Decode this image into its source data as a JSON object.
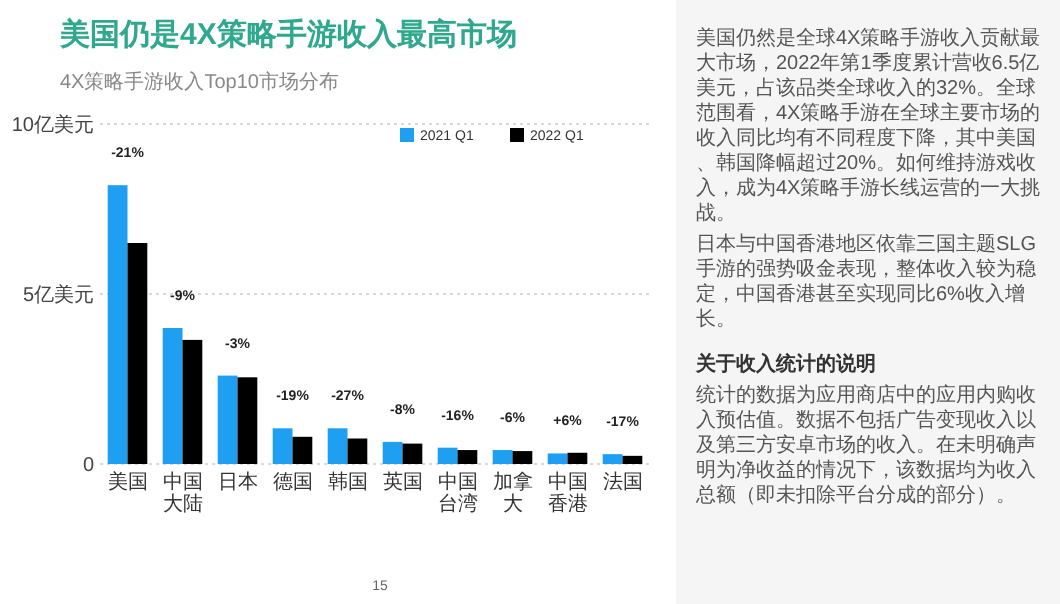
{
  "chart_data": {
    "type": "bar",
    "title": "美国仍是4X策略手游收入最高市场",
    "subtitle": "4X策略手游收入Top10市场分布",
    "categories": [
      "美国",
      "中国大陆",
      "日本",
      "德国",
      "韩国",
      "英国",
      "中国台湾",
      "加拿大",
      "中国香港",
      "法国"
    ],
    "series": [
      {
        "name": "2021 Q1",
        "color": "#1e9ff2",
        "values": [
          8.2,
          4.0,
          2.6,
          1.05,
          1.05,
          0.65,
          0.48,
          0.41,
          0.31,
          0.29
        ]
      },
      {
        "name": "2022 Q1",
        "color": "#000000",
        "values": [
          6.5,
          3.65,
          2.55,
          0.8,
          0.75,
          0.6,
          0.41,
          0.38,
          0.33,
          0.24
        ]
      }
    ],
    "ylim": [
      0,
      10
    ],
    "yticks": [
      0,
      {
        "value": 5,
        "label": "5亿美元"
      },
      {
        "value": 10,
        "label": "10亿美元"
      }
    ],
    "grid": "y",
    "legend": "top right",
    "annotations": [
      {
        "text": "-21%",
        "x": "美国",
        "y": 8.2
      },
      {
        "text": "-9%",
        "x": "中国大陆",
        "y": 4.0
      },
      {
        "text": "-3%",
        "x": "日本",
        "y": 2.6
      },
      {
        "text": "-19%",
        "x": "德国",
        "y": 1.05
      },
      {
        "text": "-27%",
        "x": "韩国",
        "y": 1.05
      },
      {
        "text": "-8%",
        "x": "英国",
        "y": 0.65
      },
      {
        "text": "-16%",
        "x": "中国台湾",
        "y": 0.48
      },
      {
        "text": "-6%",
        "x": "加拿大",
        "y": 0.41
      },
      {
        "text": "+6%",
        "x": "中国香港",
        "y": 0.33
      },
      {
        "text": "-17%",
        "x": "法国",
        "y": 0.29
      },
      "美国仍然是全球4X策略手游收入贡献最大市场，2022年第1季度累计营收6.5亿美元，占该品类全球收入的32%。全球范围看，4X策略手游在全球主要市场的收入同比均有不同程度下降，其中美国、韩国降幅超过20%。如何维持游戏收入，成为4X策略手游长线运营的一大挑战。",
      "日本与中国香港地区依靠三国主题SLG手游的强势吸金表现，整体收入较为稳定，中国香港甚至实现同比6%收入增长。",
      "关于收入统计的说明",
      "统计的数据为应用商店中的应用内购收入预估值。数据不包括广告变现收入以及第三方安卓市场的收入。在未明确声明为净收益的情况下，该数据均为收入总额（即未扣除平台分成的部分）。",
      "15"
    ]
  }
}
